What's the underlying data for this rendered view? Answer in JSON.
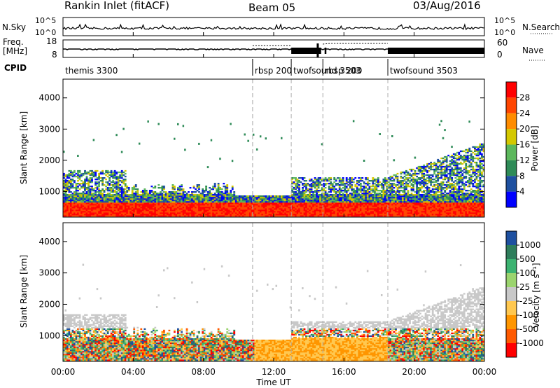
{
  "header": {
    "station": "Rankin Inlet (fitACF)",
    "beam": "Beam 05",
    "date": "03/Aug/2016"
  },
  "noise_panel": {
    "left_label": "N.Sky",
    "right_label": "N.Search",
    "left_ticks": [
      "10^5",
      "10^0"
    ],
    "right_ticks": [
      "10^5",
      "10^0"
    ]
  },
  "freq_panel": {
    "left_label_line1": "Freq.",
    "left_label_line2": "[MHz]",
    "right_label": "Nave",
    "left_ticks": [
      "18",
      "8"
    ],
    "right_ticks": [
      "60",
      "0"
    ]
  },
  "cpid": {
    "label": "CPID",
    "segments": [
      {
        "name": "themis 3300",
        "start": 0.0
      },
      {
        "name": "rbsp 200",
        "start": 10.8
      },
      {
        "name": "twofsound 3503",
        "start": 13.0
      },
      {
        "name": "rbsp 200",
        "start": 14.8
      },
      {
        "name": "twofsound 3503",
        "start": 18.5
      }
    ]
  },
  "xaxis": {
    "label": "Time UT",
    "ticks": [
      "00:00",
      "04:00",
      "08:00",
      "12:00",
      "16:00",
      "20:00",
      "00:00"
    ]
  },
  "chart_data": [
    {
      "type": "heatmap",
      "quantity": "power",
      "ylabel": "Slant Range [km]",
      "yticks": [
        1000,
        2000,
        3000,
        4000
      ],
      "ylim": [
        180,
        4600
      ],
      "xlim": [
        0,
        24
      ],
      "colorbar_label": "Power [dB]",
      "colorbar_ticks": [
        "28",
        "24",
        "20",
        "16",
        "12",
        "8",
        "4"
      ],
      "colorscale": [
        "#0000ff",
        "#1e50a0",
        "#2e8b57",
        "#5cb85c",
        "#d4c800",
        "#ff8c00",
        "#ff4500",
        "#ff0000"
      ],
      "backscatter_regions": [
        {
          "t0": 0.0,
          "t1": 3.6,
          "r0": 200,
          "r1": 1700,
          "level": "high"
        },
        {
          "t0": 3.6,
          "t1": 9.8,
          "r0": 200,
          "r1": 1300,
          "level": "mixed"
        },
        {
          "t0": 9.8,
          "t1": 13.0,
          "r0": 200,
          "r1": 900,
          "level": "high"
        },
        {
          "t0": 13.0,
          "t1": 18.5,
          "r0": 200,
          "r1": 1600,
          "level": "high"
        },
        {
          "t0": 18.5,
          "t1": 24.0,
          "r0": 200,
          "r1": 2600,
          "level": "mixed"
        }
      ]
    },
    {
      "type": "heatmap",
      "quantity": "velocity",
      "ylabel": "Slant Range [km]",
      "yticks": [
        1000,
        2000,
        3000,
        4000
      ],
      "ylim": [
        180,
        4600
      ],
      "xlim": [
        0,
        24
      ],
      "colorbar_label": "Velocity [m s⁻¹]",
      "colorbar_ticks": [
        "1000",
        "500",
        "100",
        "25",
        "-25",
        "-100",
        "-500",
        "-1000"
      ],
      "colorscale": [
        "#ff0000",
        "#ff5a00",
        "#ff9600",
        "#ffc850",
        "#c8c8c8",
        "#9bd46e",
        "#3cb371",
        "#2e7d5b",
        "#1e50a0"
      ]
    }
  ]
}
